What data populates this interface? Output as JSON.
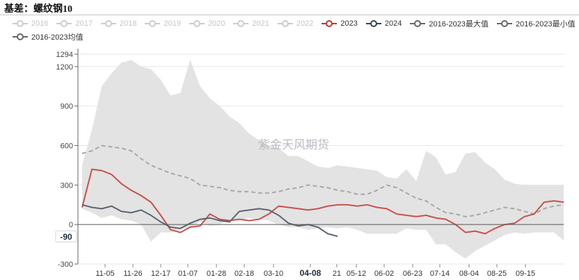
{
  "title": "基差：螺纹钢10",
  "watermark": "紫金天风期货",
  "legend": [
    {
      "name": "2016",
      "color": "#cccccc",
      "active": false
    },
    {
      "name": "2017",
      "color": "#cccccc",
      "active": false
    },
    {
      "name": "2018",
      "color": "#cccccc",
      "active": false
    },
    {
      "name": "2019",
      "color": "#cccccc",
      "active": false
    },
    {
      "name": "2020",
      "color": "#cccccc",
      "active": false
    },
    {
      "name": "2021",
      "color": "#cccccc",
      "active": false
    },
    {
      "name": "2022",
      "color": "#cccccc",
      "active": false
    },
    {
      "name": "2023",
      "color": "#c23531",
      "active": true
    },
    {
      "name": "2024",
      "color": "#2f4554",
      "active": true
    },
    {
      "name": "2016-2023最大值",
      "color": "#666666",
      "active": true
    },
    {
      "name": "2016-2023最小值",
      "color": "#666666",
      "active": true
    },
    {
      "name": "2016-2023均值",
      "color": "#666666",
      "active": true
    }
  ],
  "chart_data": {
    "type": "line",
    "x_ticks": [
      "11-05",
      "11-26",
      "12-17",
      "01-07",
      "01-28",
      "02-18",
      "03-10",
      "04-08",
      "21",
      "05-12",
      "06-02",
      "06-23",
      "07-14",
      "08-04",
      "08-25",
      "09-15"
    ],
    "selected_x_label": "04-08",
    "y_ticks": [
      1294,
      1200,
      900,
      600,
      300,
      0,
      -300
    ],
    "ylim": [
      -300,
      1294
    ],
    "pointer_value": "-90",
    "x_positions": [
      0,
      3,
      6,
      9,
      12,
      15,
      18,
      21,
      24,
      27,
      30,
      33,
      36,
      39,
      42,
      45,
      48,
      51,
      54,
      57,
      60,
      63,
      66,
      69,
      72,
      75,
      78,
      81,
      84,
      87,
      90,
      93,
      96,
      99,
      102,
      105,
      108,
      111,
      114,
      117,
      120,
      123,
      126,
      129,
      132,
      135,
      138,
      141,
      144,
      147
    ],
    "series": [
      {
        "name": "2016-2023最大值",
        "role": "band-upper",
        "values": [
          450,
          720,
          1050,
          1150,
          1230,
          1250,
          1200,
          1180,
          1100,
          980,
          1000,
          1250,
          1050,
          960,
          900,
          820,
          770,
          690,
          640,
          600,
          580,
          520,
          520,
          480,
          440,
          430,
          450,
          440,
          430,
          420,
          410,
          360,
          350,
          420,
          330,
          560,
          510,
          380,
          400,
          540,
          550,
          470,
          420,
          340,
          310,
          300,
          300,
          300,
          300,
          300
        ]
      },
      {
        "name": "2016-2023最小值",
        "role": "band-lower",
        "values": [
          120,
          90,
          50,
          70,
          40,
          30,
          0,
          -130,
          -60,
          -60,
          -40,
          -20,
          20,
          -10,
          0,
          40,
          30,
          50,
          40,
          30,
          0,
          -20,
          -20,
          -40,
          -30,
          -20,
          -30,
          -20,
          -40,
          -70,
          -70,
          -70,
          -70,
          -30,
          -40,
          -40,
          -150,
          -150,
          -210,
          -260,
          -200,
          -160,
          -120,
          -80,
          -60,
          -70,
          -60,
          -60,
          -60,
          -120
        ]
      },
      {
        "name": "2016-2023均值",
        "role": "mean",
        "values": [
          540,
          560,
          600,
          590,
          580,
          560,
          500,
          450,
          420,
          390,
          370,
          350,
          300,
          290,
          280,
          260,
          250,
          250,
          240,
          240,
          250,
          270,
          280,
          300,
          290,
          280,
          260,
          250,
          230,
          230,
          260,
          300,
          280,
          240,
          200,
          180,
          130,
          90,
          80,
          60,
          70,
          90,
          110,
          130,
          120,
          100,
          80,
          120,
          140,
          150
        ]
      },
      {
        "name": "2023",
        "role": "line",
        "values": [
          130,
          420,
          410,
          380,
          310,
          260,
          220,
          170,
          70,
          -40,
          -60,
          -20,
          -10,
          80,
          40,
          30,
          40,
          30,
          40,
          80,
          140,
          130,
          120,
          110,
          120,
          140,
          150,
          150,
          140,
          150,
          130,
          120,
          80,
          70,
          60,
          70,
          50,
          40,
          0,
          -60,
          -50,
          -70,
          -30,
          0,
          10,
          60,
          80,
          170,
          180,
          170
        ]
      },
      {
        "name": "2024",
        "role": "line",
        "values": [
          150,
          130,
          120,
          140,
          100,
          90,
          110,
          70,
          20,
          -20,
          -30,
          10,
          40,
          50,
          30,
          20,
          100,
          110,
          120,
          110,
          70,
          10,
          -10,
          0,
          -20,
          -70,
          -90
        ]
      }
    ]
  }
}
